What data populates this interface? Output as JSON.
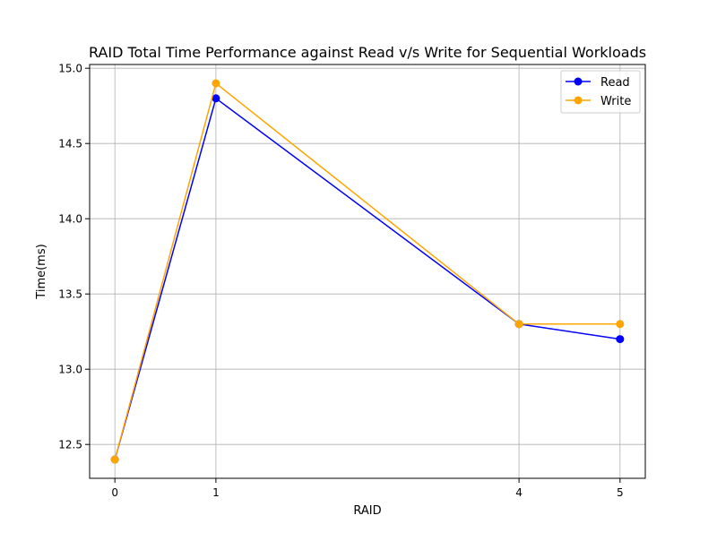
{
  "chart_data": {
    "type": "line",
    "title": "RAID Total Time Performance against Read v/s Write for Sequential Workloads",
    "xlabel": "RAID",
    "ylabel": "Time(ms)",
    "x": [
      0,
      1,
      4,
      5
    ],
    "x_ticks": [
      "0",
      "1",
      "4",
      "5"
    ],
    "y_ticks": [
      "12.5",
      "13.0",
      "13.5",
      "14.0",
      "14.5",
      "15.0"
    ],
    "xlim": [
      -0.25,
      5.25
    ],
    "ylim": [
      12.275,
      15.025
    ],
    "grid": true,
    "legend_position": "top-right",
    "series": [
      {
        "name": "Read",
        "color": "#0000ff",
        "marker": "circle",
        "values": [
          12.4,
          14.8,
          13.3,
          13.2
        ]
      },
      {
        "name": "Write",
        "color": "#ffa500",
        "marker": "circle",
        "values": [
          12.4,
          14.9,
          13.3,
          13.3
        ]
      }
    ]
  }
}
